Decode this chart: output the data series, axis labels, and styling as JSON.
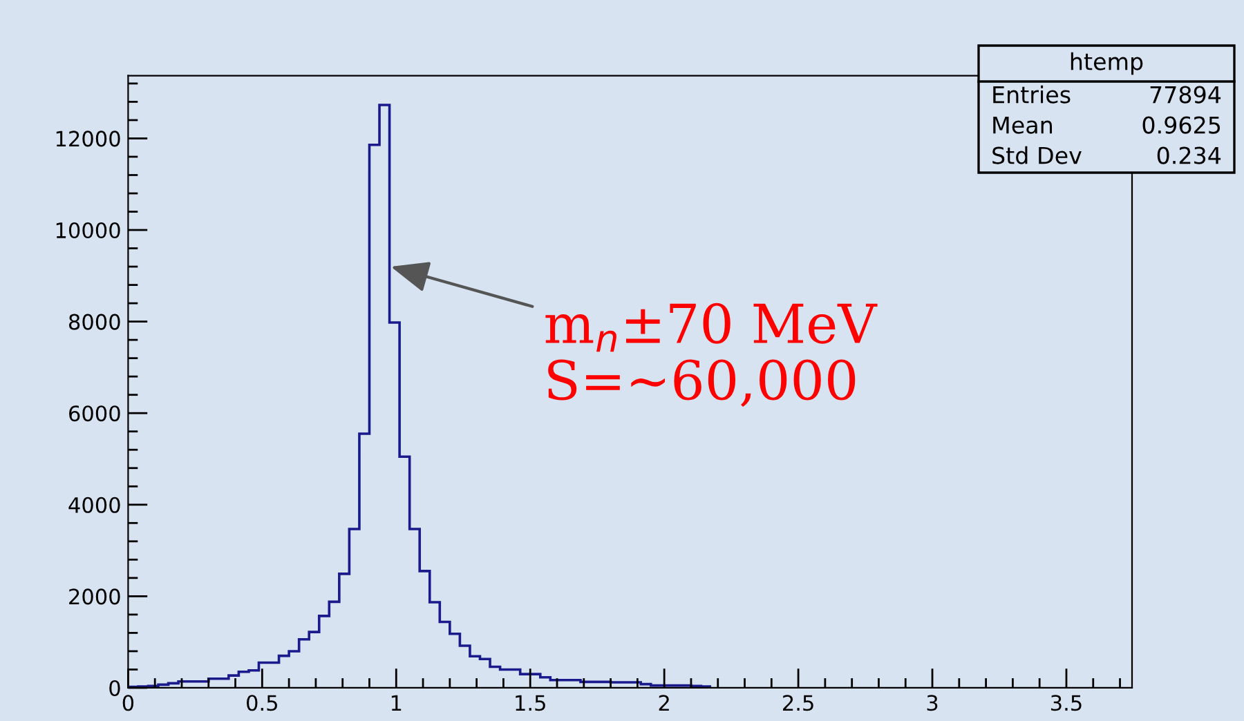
{
  "chart_data": {
    "type": "histogram",
    "bins": [
      0,
      0.0375,
      0.075,
      0.1125,
      0.15,
      0.1875,
      0.225,
      0.2625,
      0.3,
      0.3375,
      0.375,
      0.4125,
      0.45,
      0.4875,
      0.525,
      0.5625,
      0.6,
      0.6375,
      0.675,
      0.7125,
      0.75,
      0.7875,
      0.825,
      0.8625,
      0.9,
      0.9375,
      0.975,
      1.0125,
      1.05,
      1.0875,
      1.125,
      1.1625,
      1.2,
      1.2375,
      1.275,
      1.3125,
      1.35,
      1.3875,
      1.425,
      1.4625,
      1.5,
      1.5375,
      1.575,
      1.6125,
      1.65,
      1.6875,
      1.725,
      1.7625,
      1.8,
      1.8375,
      1.875,
      1.9125,
      1.95,
      1.9875,
      2.025,
      2.0625,
      2.1,
      2.1375,
      2.175
    ],
    "values": [
      20,
      30,
      40,
      70,
      100,
      140,
      140,
      140,
      200,
      200,
      270,
      350,
      380,
      550,
      550,
      700,
      800,
      1060,
      1220,
      1570,
      1880,
      2490,
      3470,
      5550,
      11860,
      12730,
      7980,
      5050,
      3470,
      2550,
      1870,
      1440,
      1180,
      920,
      690,
      630,
      460,
      400,
      400,
      300,
      300,
      230,
      170,
      170,
      170,
      130,
      130,
      130,
      120,
      120,
      120,
      80,
      50,
      50,
      50,
      50,
      40,
      30
    ],
    "color": "#1a1a8c",
    "xlim": [
      0,
      3.745
    ],
    "xticks": [
      0,
      0.5,
      1,
      1.5,
      2,
      2.5,
      3,
      3.5
    ],
    "ylim": [
      0,
      13370
    ],
    "yticks": [
      0,
      2000,
      4000,
      6000,
      8000,
      10000,
      12000
    ],
    "grid": false,
    "annotations": [
      {
        "text": "m$_{n}$±70 MeV\nS=~60,000",
        "x": 0.98,
        "y": 9200
      },
      "htemp",
      "Entries",
      "77894",
      "Mean",
      "0.9625",
      "Std Dev",
      "0.234"
    ]
  }
}
